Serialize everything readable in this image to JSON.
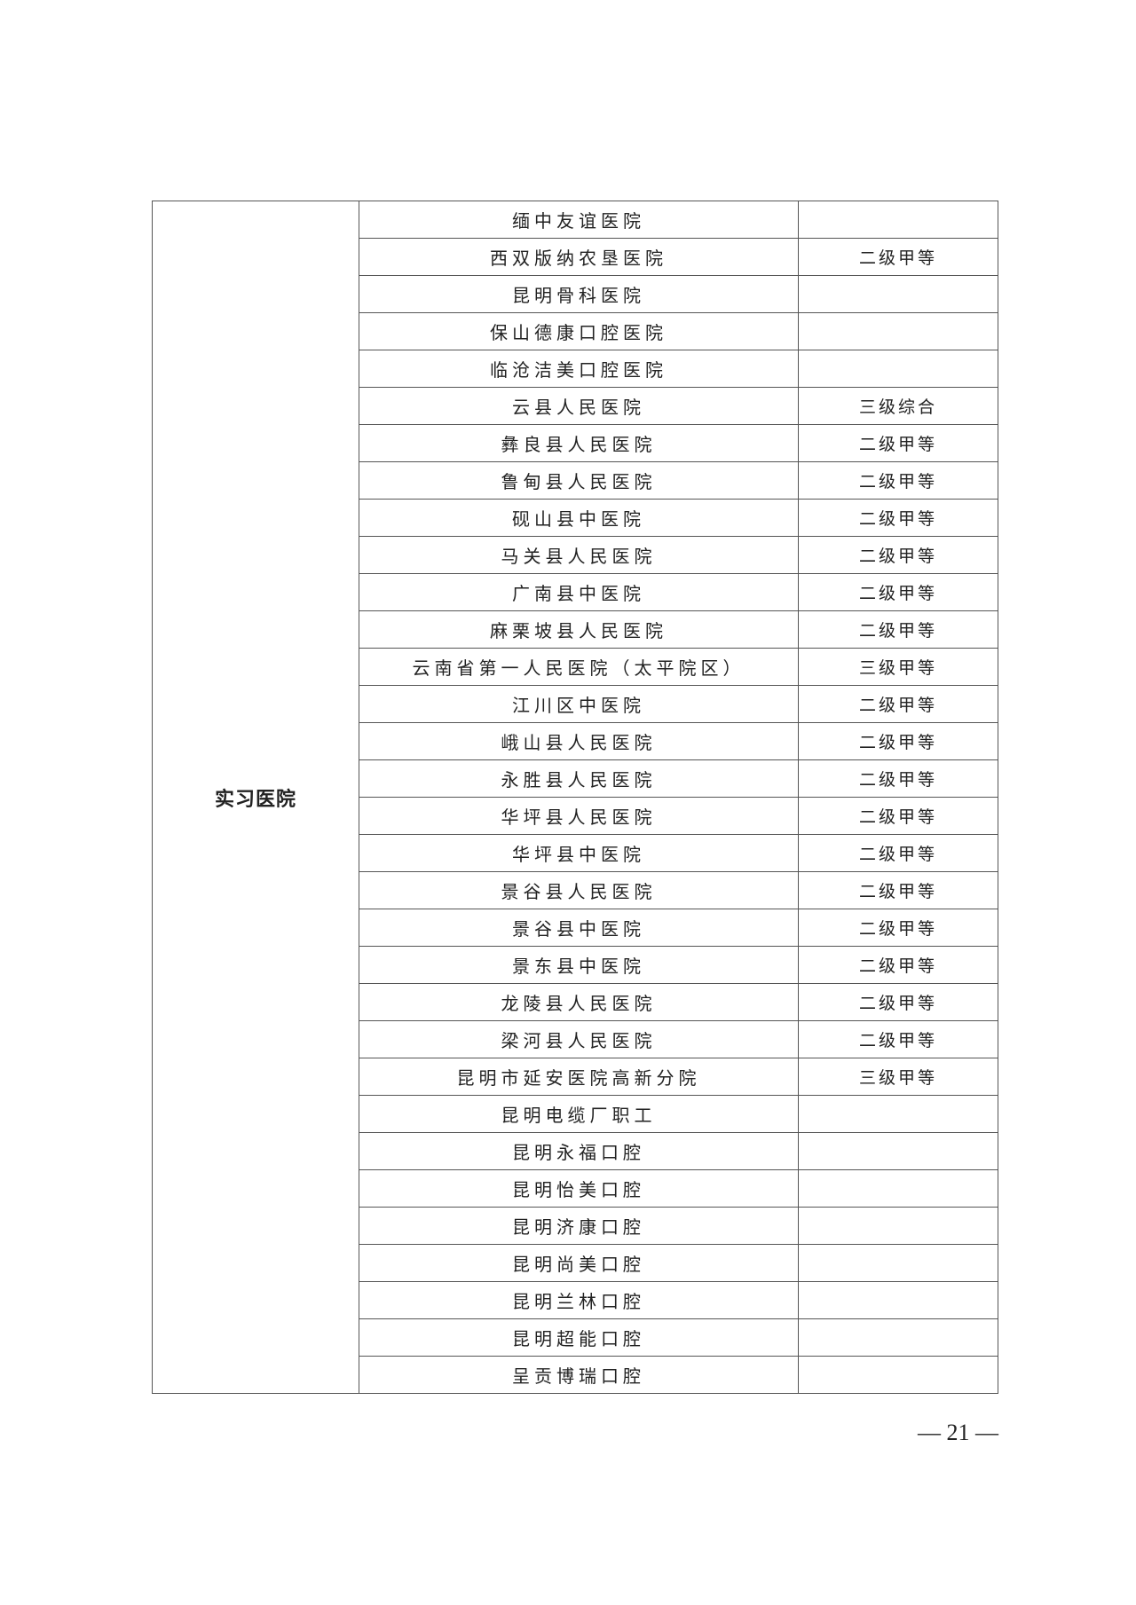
{
  "table": {
    "category": "实习医院",
    "rows": [
      {
        "name": "缅中友谊医院",
        "level": ""
      },
      {
        "name": "西双版纳农垦医院",
        "level": "二级甲等"
      },
      {
        "name": "昆明骨科医院",
        "level": ""
      },
      {
        "name": "保山德康口腔医院",
        "level": ""
      },
      {
        "name": "临沧洁美口腔医院",
        "level": ""
      },
      {
        "name": "云县人民医院",
        "level": "三级综合"
      },
      {
        "name": "彝良县人民医院",
        "level": "二级甲等"
      },
      {
        "name": "鲁甸县人民医院",
        "level": "二级甲等"
      },
      {
        "name": "砚山县中医院",
        "level": "二级甲等"
      },
      {
        "name": "马关县人民医院",
        "level": "二级甲等"
      },
      {
        "name": "广南县中医院",
        "level": "二级甲等"
      },
      {
        "name": "麻栗坡县人民医院",
        "level": "二级甲等"
      },
      {
        "name": "云南省第一人民医院（太平院区）",
        "level": "三级甲等"
      },
      {
        "name": "江川区中医院",
        "level": "二级甲等"
      },
      {
        "name": "峨山县人民医院",
        "level": "二级甲等"
      },
      {
        "name": "永胜县人民医院",
        "level": "二级甲等"
      },
      {
        "name": "华坪县人民医院",
        "level": "二级甲等"
      },
      {
        "name": "华坪县中医院",
        "level": "二级甲等"
      },
      {
        "name": "景谷县人民医院",
        "level": "二级甲等"
      },
      {
        "name": "景谷县中医院",
        "level": "二级甲等"
      },
      {
        "name": "景东县中医院",
        "level": "二级甲等"
      },
      {
        "name": "龙陵县人民医院",
        "level": "二级甲等"
      },
      {
        "name": "梁河县人民医院",
        "level": "二级甲等"
      },
      {
        "name": "昆明市延安医院高新分院",
        "level": "三级甲等"
      },
      {
        "name": "昆明电缆厂职工",
        "level": ""
      },
      {
        "name": "昆明永福口腔",
        "level": ""
      },
      {
        "name": "昆明怡美口腔",
        "level": ""
      },
      {
        "name": "昆明济康口腔",
        "level": ""
      },
      {
        "name": "昆明尚美口腔",
        "level": ""
      },
      {
        "name": "昆明兰林口腔",
        "level": ""
      },
      {
        "name": "昆明超能口腔",
        "level": ""
      },
      {
        "name": "呈贡博瑞口腔",
        "level": ""
      }
    ]
  },
  "footer": {
    "page_number": "— 21 —"
  }
}
